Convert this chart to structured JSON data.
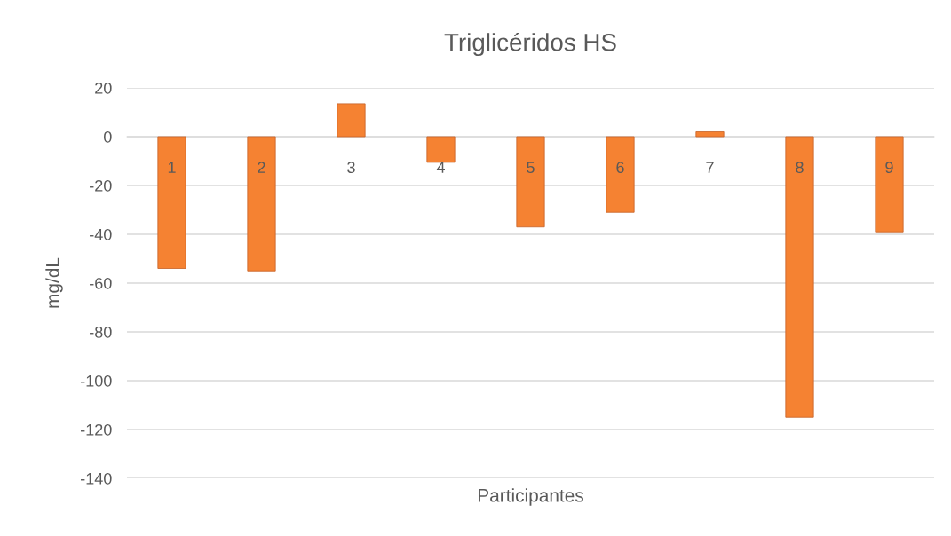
{
  "chart_data": {
    "type": "bar",
    "title": "Triglicéridos HS",
    "xlabel": "Participantes",
    "ylabel": "mg/dL",
    "categories": [
      "1",
      "2",
      "3",
      "4",
      "5",
      "6",
      "7",
      "8",
      "9"
    ],
    "values": [
      -54,
      -55,
      13.5,
      -10.5,
      -37,
      -31,
      2,
      -115,
      -39
    ],
    "color": "#f58232",
    "ylim": [
      -140,
      20
    ],
    "yticks": [
      -140,
      -120,
      -100,
      -80,
      -60,
      -40,
      -20,
      0,
      20
    ],
    "grid": "y"
  }
}
